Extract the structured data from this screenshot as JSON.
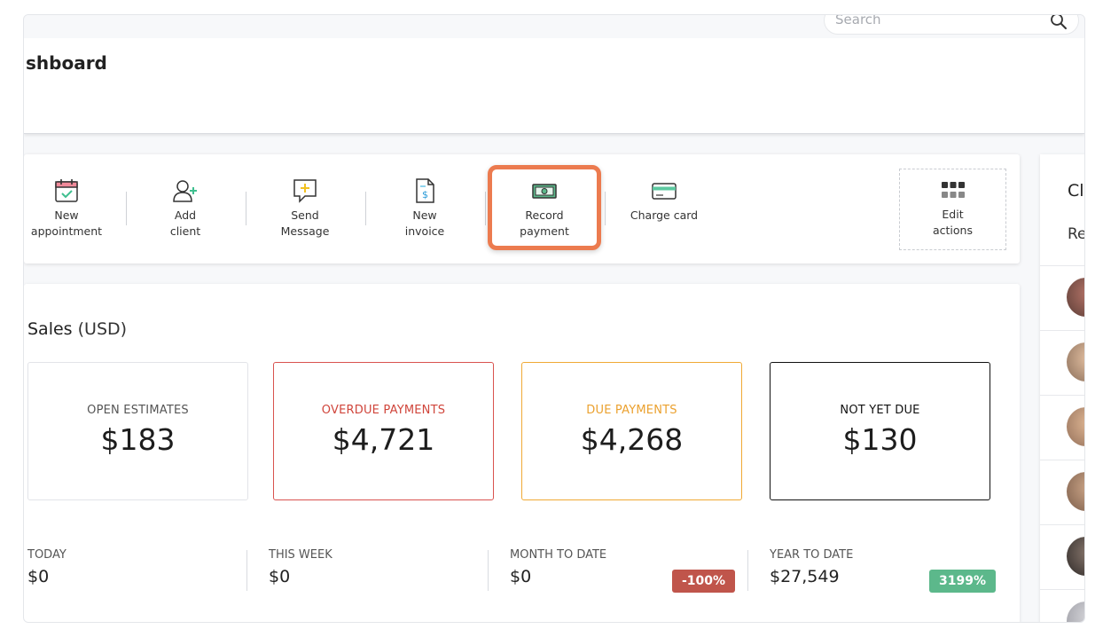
{
  "search": {
    "placeholder": "Search",
    "icon": "search-icon"
  },
  "header": {
    "title": "shboard"
  },
  "actions": [
    {
      "label": "New\nappointment",
      "icon": "calendar-check-icon"
    },
    {
      "label": "Add\nclient",
      "icon": "add-user-icon"
    },
    {
      "label": "Send\nMessage",
      "icon": "chat-plus-icon"
    },
    {
      "label": "New\ninvoice",
      "icon": "invoice-dollar-icon"
    },
    {
      "label": "Record\npayment",
      "icon": "cash-icon"
    },
    {
      "label": "Charge card",
      "icon": "credit-card-icon"
    }
  ],
  "edit_actions": {
    "label": "Edit\nactions",
    "icon": "grid-icon"
  },
  "sales": {
    "title": "Sales",
    "unit": "(USD)",
    "boxes": [
      {
        "caption": "OPEN ESTIMATES",
        "value": "$183",
        "color": "#555555",
        "border": "#e2e4e8"
      },
      {
        "caption": "OVERDUE PAYMENTS",
        "value": "$4,721",
        "color": "#d0453b",
        "border": "#d9534f"
      },
      {
        "caption": "DUE PAYMENTS",
        "value": "$4,268",
        "color": "#eba12f",
        "border": "#f0a935"
      },
      {
        "caption": "NOT YET DUE",
        "value": "$130",
        "color": "#111111",
        "border": "#111111"
      }
    ],
    "periods": [
      {
        "caption": "TODAY",
        "value": "$0"
      },
      {
        "caption": "THIS WEEK",
        "value": "$0"
      },
      {
        "caption": "MONTH TO DATE",
        "value": "$0",
        "badge": "-100%",
        "badge_color": "#c0554b"
      },
      {
        "caption": "YEAR TO DATE",
        "value": "$27,549",
        "badge": "3199%",
        "badge_color": "#5cb88b"
      }
    ]
  },
  "right_panel": {
    "title": "Cl",
    "subtitle": "Re"
  },
  "colors": {
    "highlight": "#ec7b4f",
    "accent_green": "#3fbf8f"
  }
}
